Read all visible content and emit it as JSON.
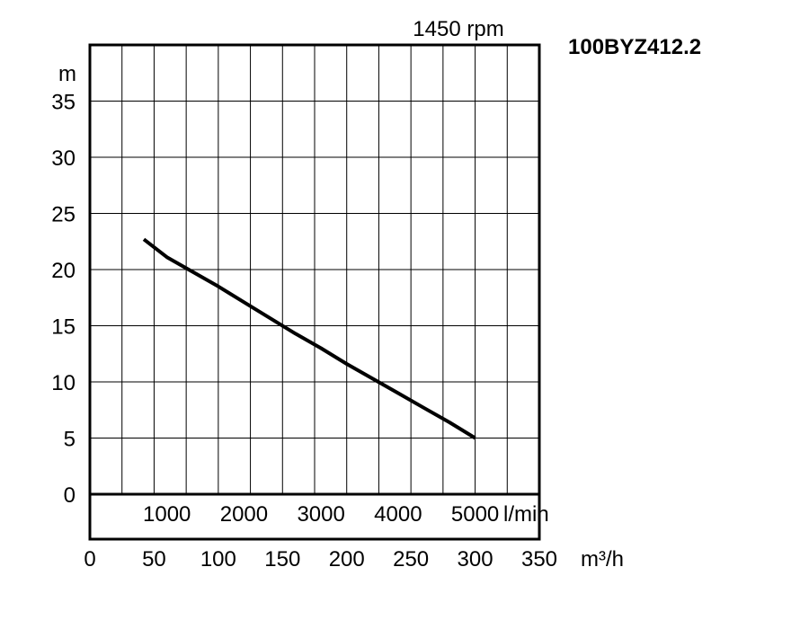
{
  "chart_data": {
    "type": "line",
    "model": "100BYZ412.2",
    "speed": "1450 rpm",
    "ylabel": "m",
    "x_unit": "m³/h",
    "x2_unit": "l/min",
    "xlim": [
      0,
      350
    ],
    "ylim": [
      0,
      40
    ],
    "y_ticks": [
      0,
      5,
      10,
      15,
      20,
      25,
      30,
      35
    ],
    "x_ticks": [
      0,
      50,
      100,
      150,
      200,
      250,
      300,
      350
    ],
    "x2_ticks": [
      1000,
      2000,
      3000,
      4000,
      5000
    ],
    "grid": true,
    "series": [
      {
        "x": [
          42,
          60,
          80,
          100,
          120,
          140,
          160,
          180,
          200,
          220,
          240,
          260,
          280,
          300
        ],
        "y": [
          22.7,
          21.1,
          19.8,
          18.5,
          17.1,
          15.7,
          14.3,
          13.0,
          11.6,
          10.3,
          9.0,
          7.7,
          6.4,
          5.0
        ]
      }
    ]
  }
}
